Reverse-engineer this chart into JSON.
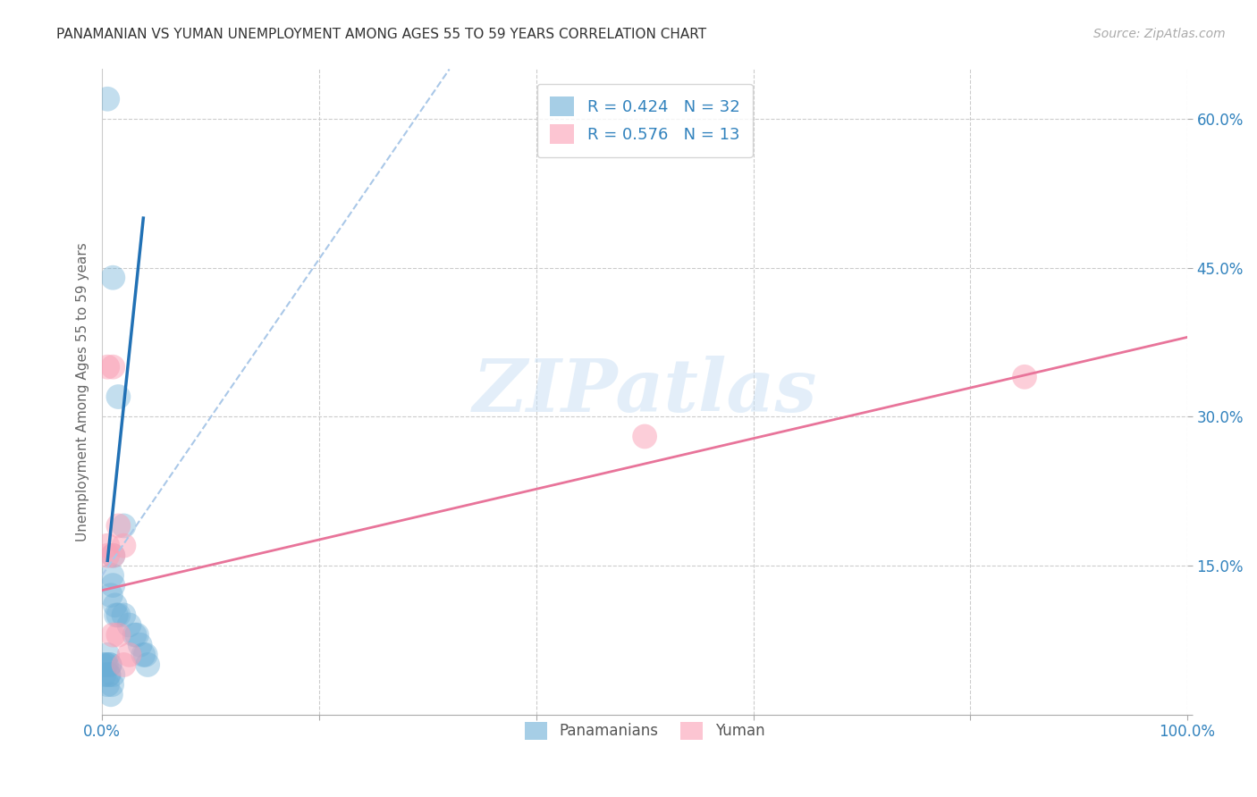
{
  "title": "PANAMANIAN VS YUMAN UNEMPLOYMENT AMONG AGES 55 TO 59 YEARS CORRELATION CHART",
  "source": "Source: ZipAtlas.com",
  "ylabel": "Unemployment Among Ages 55 to 59 years",
  "xlim": [
    0,
    1.0
  ],
  "ylim": [
    0,
    0.65
  ],
  "xticks": [
    0.0,
    0.2,
    0.4,
    0.6,
    0.8,
    1.0
  ],
  "xticklabels": [
    "0.0%",
    "",
    "",
    "",
    "",
    "100.0%"
  ],
  "yticks": [
    0.0,
    0.15,
    0.3,
    0.45,
    0.6
  ],
  "yticklabels": [
    "",
    "15.0%",
    "30.0%",
    "45.0%",
    "60.0%"
  ],
  "pan_color": "#6baed6",
  "yum_color": "#fa9fb5",
  "pan_R": 0.424,
  "pan_N": 32,
  "yum_R": 0.576,
  "yum_N": 13,
  "pan_scatter_x": [
    0.005,
    0.01,
    0.015,
    0.02,
    0.0,
    0.002,
    0.003,
    0.004,
    0.005,
    0.006,
    0.007,
    0.008,
    0.009,
    0.01,
    0.01,
    0.012,
    0.013,
    0.015,
    0.02,
    0.025,
    0.03,
    0.032,
    0.035,
    0.038,
    0.04,
    0.042,
    0.005,
    0.006,
    0.007,
    0.008,
    0.009,
    0.01
  ],
  "pan_scatter_y": [
    0.62,
    0.44,
    0.32,
    0.19,
    0.05,
    0.04,
    0.05,
    0.05,
    0.06,
    0.04,
    0.05,
    0.12,
    0.14,
    0.13,
    0.16,
    0.11,
    0.1,
    0.1,
    0.1,
    0.09,
    0.08,
    0.08,
    0.07,
    0.06,
    0.06,
    0.05,
    0.03,
    0.04,
    0.05,
    0.02,
    0.03,
    0.04
  ],
  "yum_scatter_x": [
    0.005,
    0.01,
    0.015,
    0.02,
    0.005,
    0.01,
    0.015,
    0.5,
    0.85,
    0.02,
    0.025,
    0.005,
    0.01
  ],
  "yum_scatter_y": [
    0.35,
    0.35,
    0.19,
    0.17,
    0.17,
    0.08,
    0.08,
    0.28,
    0.34,
    0.05,
    0.06,
    0.16,
    0.16
  ],
  "pan_dash_line_x": [
    0.0,
    0.32
  ],
  "pan_dash_line_y": [
    0.14,
    0.65
  ],
  "pan_solid_line_x": [
    0.005,
    0.038
  ],
  "pan_solid_line_y": [
    0.155,
    0.5
  ],
  "yum_line_x": [
    0.0,
    1.0
  ],
  "yum_line_y": [
    0.125,
    0.38
  ],
  "watermark_text": "ZIPatlas",
  "background_color": "#ffffff",
  "grid_color": "#cccccc"
}
